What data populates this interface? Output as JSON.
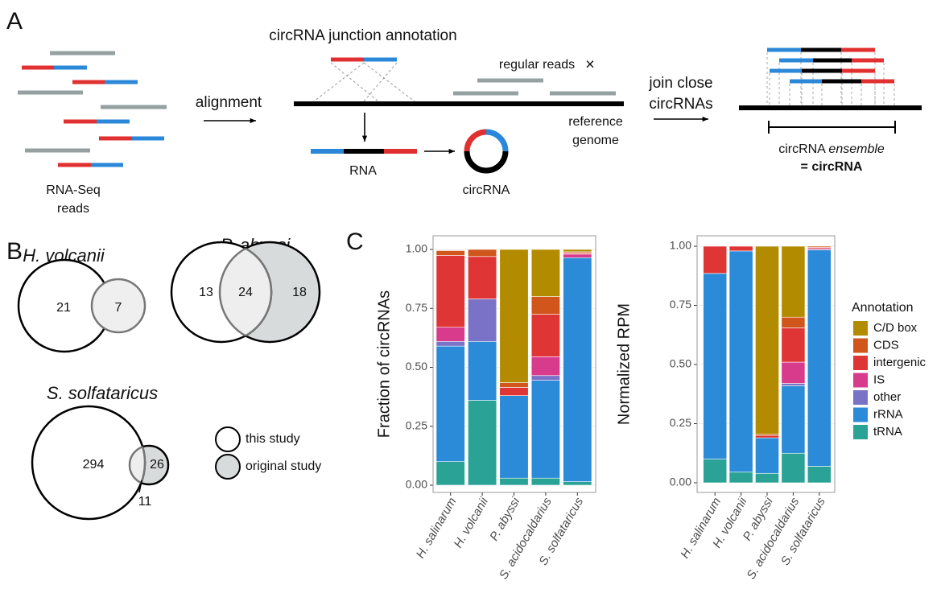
{
  "panel_a": {
    "label": "A",
    "title": "circRNA junction annotation",
    "reads_label": [
      "RNA-Seq",
      "reads"
    ],
    "alignment": "alignment",
    "regular_reads": "regular reads",
    "reference_genome": [
      "reference",
      "genome"
    ],
    "rna": "RNA",
    "circrna": "circRNA",
    "join": [
      "join close",
      "circRNAs"
    ],
    "ensemble": [
      "circRNA",
      "ensemble"
    ],
    "result": "= circRNA"
  },
  "panel_b": {
    "label": "B",
    "venns": [
      {
        "title": "H. volcanii",
        "counts": [
          21,
          7
        ]
      },
      {
        "title": "P. abyssi",
        "counts": [
          13,
          24,
          18
        ]
      },
      {
        "title": "S. solfataricus",
        "counts": [
          294,
          26,
          11
        ]
      }
    ],
    "legend": [
      "this study",
      "original study"
    ]
  },
  "panel_c": {
    "label": "C"
  },
  "chart_data": [
    {
      "type": "bar",
      "stacked": true,
      "y_label": "Fraction of circRNAs",
      "categories": [
        "H. salinarum",
        "H. volcanii",
        "P. abyssi",
        "S. acidocaldarius",
        "S. solfataricus"
      ],
      "series": [
        {
          "name": "tRNA",
          "color": "#2aa396",
          "values": [
            0.1,
            0.36,
            0.03,
            0.03,
            0.015
          ]
        },
        {
          "name": "rRNA",
          "color": "#2b8bd8",
          "values": [
            0.49,
            0.25,
            0.35,
            0.415,
            0.95
          ]
        },
        {
          "name": "other",
          "color": "#7a72c6",
          "values": [
            0.02,
            0.18,
            0,
            0.02,
            0
          ]
        },
        {
          "name": "IS",
          "color": "#d83a8c",
          "values": [
            0.06,
            0,
            0,
            0.08,
            0.015
          ]
        },
        {
          "name": "intergenic",
          "color": "#e03535",
          "values": [
            0.305,
            0.18,
            0.035,
            0.18,
            0.005
          ]
        },
        {
          "name": "CDS",
          "color": "#d0561c",
          "values": [
            0.02,
            0.03,
            0.02,
            0.075,
            0.005
          ]
        },
        {
          "name": "C/D box",
          "color": "#b38b00",
          "values": [
            0,
            0,
            0.565,
            0.2,
            0.01
          ]
        }
      ],
      "ylim": [
        0,
        1
      ],
      "yticks": [
        {
          "value": 0,
          "label": "0.00"
        },
        {
          "value": 0.25,
          "label": "0.25"
        },
        {
          "value": 0.5,
          "label": "0.50"
        },
        {
          "value": 0.75,
          "label": "0.75"
        },
        {
          "value": 1,
          "label": "1.00"
        }
      ],
      "grid": true,
      "legend": "right",
      "legend_title": "Annotation"
    },
    {
      "type": "bar",
      "stacked": true,
      "y_label": "Normalized RPM",
      "categories": [
        "H. salinarum",
        "H. volcanii",
        "P. abyssi",
        "S. acidocaldarius",
        "S. solfataricus"
      ],
      "series": [
        {
          "color": "#2aa396",
          "values": [
            0.1,
            0.045,
            0.04,
            0.125,
            0.07
          ]
        },
        {
          "color": "#2b8bd8",
          "values": [
            0.785,
            0.935,
            0.15,
            0.285,
            0.915
          ]
        },
        {
          "color": "#7a72c6",
          "values": [
            0,
            0,
            0,
            0.01,
            0
          ]
        },
        {
          "color": "#d83a8c",
          "values": [
            0,
            0,
            0,
            0.09,
            0.005
          ]
        },
        {
          "color": "#e03535",
          "values": [
            0.115,
            0.02,
            0.01,
            0.145,
            0.005
          ]
        },
        {
          "color": "#d0561c",
          "values": [
            0,
            0,
            0.005,
            0.045,
            0.005
          ]
        },
        {
          "color": "#b38b00",
          "values": [
            0,
            0,
            0.795,
            0.3,
            0
          ]
        }
      ],
      "ylim": [
        0,
        1
      ],
      "yticks": [
        {
          "value": 0,
          "label": "0.00"
        },
        {
          "value": 0.25,
          "label": "0.25"
        },
        {
          "value": 0.5,
          "label": "0.50"
        },
        {
          "value": 0.75,
          "label": "0.75"
        },
        {
          "value": 1,
          "label": "1.00"
        }
      ],
      "grid": true
    }
  ]
}
